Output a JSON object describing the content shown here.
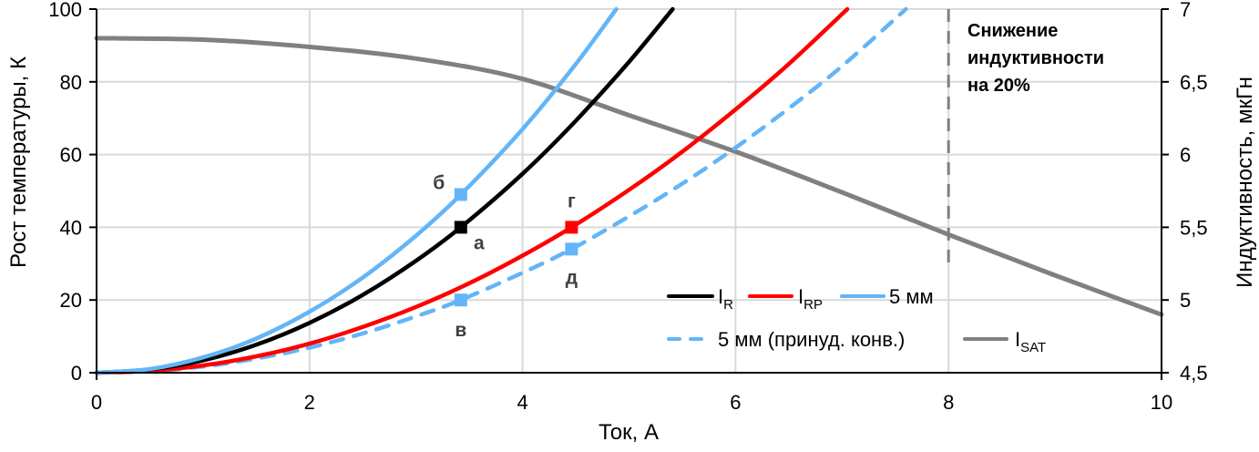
{
  "chart_data": {
    "type": "line",
    "xlabel": "Ток, А",
    "ylabel": "Рост температуры, К",
    "y2label": "Индуктивность, мкГн",
    "xlim": [
      0,
      10
    ],
    "ylim": [
      0,
      100
    ],
    "y2lim": [
      4.5,
      7
    ],
    "x_ticks": [
      "0",
      "2",
      "4",
      "6",
      "8",
      "10"
    ],
    "y_ticks": [
      "0",
      "20",
      "40",
      "60",
      "80",
      "100"
    ],
    "y2_ticks": [
      "4,5",
      "5",
      "5,5",
      "6",
      "6,5",
      "7"
    ],
    "grid": true,
    "legend_position": "bottom-right",
    "series": [
      {
        "name": "IR",
        "label_main": "I",
        "label_sub": "R",
        "color": "#000000",
        "dash": false,
        "axis": "left",
        "x": [
          0,
          0.5,
          1,
          1.5,
          2,
          2.5,
          3,
          3.42,
          4,
          4.5,
          5,
          5.41
        ],
        "y": [
          0,
          0.9,
          3.4,
          7.7,
          13.7,
          21.4,
          30.8,
          40,
          54.7,
          69.3,
          85.5,
          100
        ]
      },
      {
        "name": "IRP",
        "label_main": "I",
        "label_sub": "RP",
        "color": "#ff0000",
        "dash": false,
        "axis": "left",
        "x": [
          0,
          0.5,
          1,
          1.5,
          2,
          2.5,
          3,
          3.5,
          4,
          4.46,
          5,
          5.5,
          6,
          6.5,
          7.05
        ],
        "y": [
          0,
          0.5,
          2,
          4.5,
          8,
          12.6,
          18.1,
          24.6,
          32.2,
          40,
          50.3,
          60.8,
          72.4,
          84.9,
          100
        ]
      },
      {
        "name": "5 мм",
        "label_main": "5 мм",
        "label_sub": "",
        "color": "#63b5f7",
        "dash": false,
        "axis": "left",
        "x": [
          0,
          0.5,
          1,
          1.5,
          2,
          2.5,
          3,
          3.42,
          4,
          4.5,
          4.88
        ],
        "y": [
          0,
          1,
          4.2,
          9.4,
          16.8,
          26.2,
          37.7,
          49,
          67,
          84.9,
          100
        ]
      },
      {
        "name": "5 мм (принуд. конв.)",
        "label_main": "5 мм (принуд. конв.)",
        "label_sub": "",
        "color": "#63b5f7",
        "dash": true,
        "axis": "left",
        "x": [
          0,
          0.5,
          1,
          1.5,
          2,
          2.5,
          3,
          3.42,
          4,
          4.46,
          5,
          5.5,
          6,
          6.5,
          7,
          7.6
        ],
        "y": [
          0,
          0.4,
          1.7,
          3.9,
          6.9,
          10.8,
          15.5,
          20,
          27.5,
          34,
          43,
          52,
          61.9,
          72.7,
          84.3,
          100
        ]
      },
      {
        "name": "ISAT",
        "label_main": "I",
        "label_sub": "SAT",
        "color": "#808080",
        "dash": false,
        "axis": "right",
        "x": [
          0,
          1,
          2,
          3,
          4,
          5,
          6,
          7,
          8,
          9,
          10
        ],
        "y": [
          6.8,
          6.79,
          6.74,
          6.66,
          6.52,
          6.27,
          6.02,
          5.74,
          5.45,
          5.17,
          4.9
        ]
      }
    ],
    "markers": [
      {
        "label": "а",
        "x": 3.42,
        "y": 40,
        "color": "#000000"
      },
      {
        "label": "б",
        "x": 3.42,
        "y": 49,
        "color": "#63b5f7"
      },
      {
        "label": "в",
        "x": 3.42,
        "y": 20,
        "color": "#63b5f7"
      },
      {
        "label": "г",
        "x": 4.46,
        "y": 40,
        "color": "#ff0000"
      },
      {
        "label": "д",
        "x": 4.46,
        "y": 34,
        "color": "#63b5f7"
      }
    ],
    "annotation": {
      "x": 8,
      "lines": [
        "Снижение",
        "индуктивности",
        "на 20%"
      ],
      "color": "#808080"
    }
  }
}
